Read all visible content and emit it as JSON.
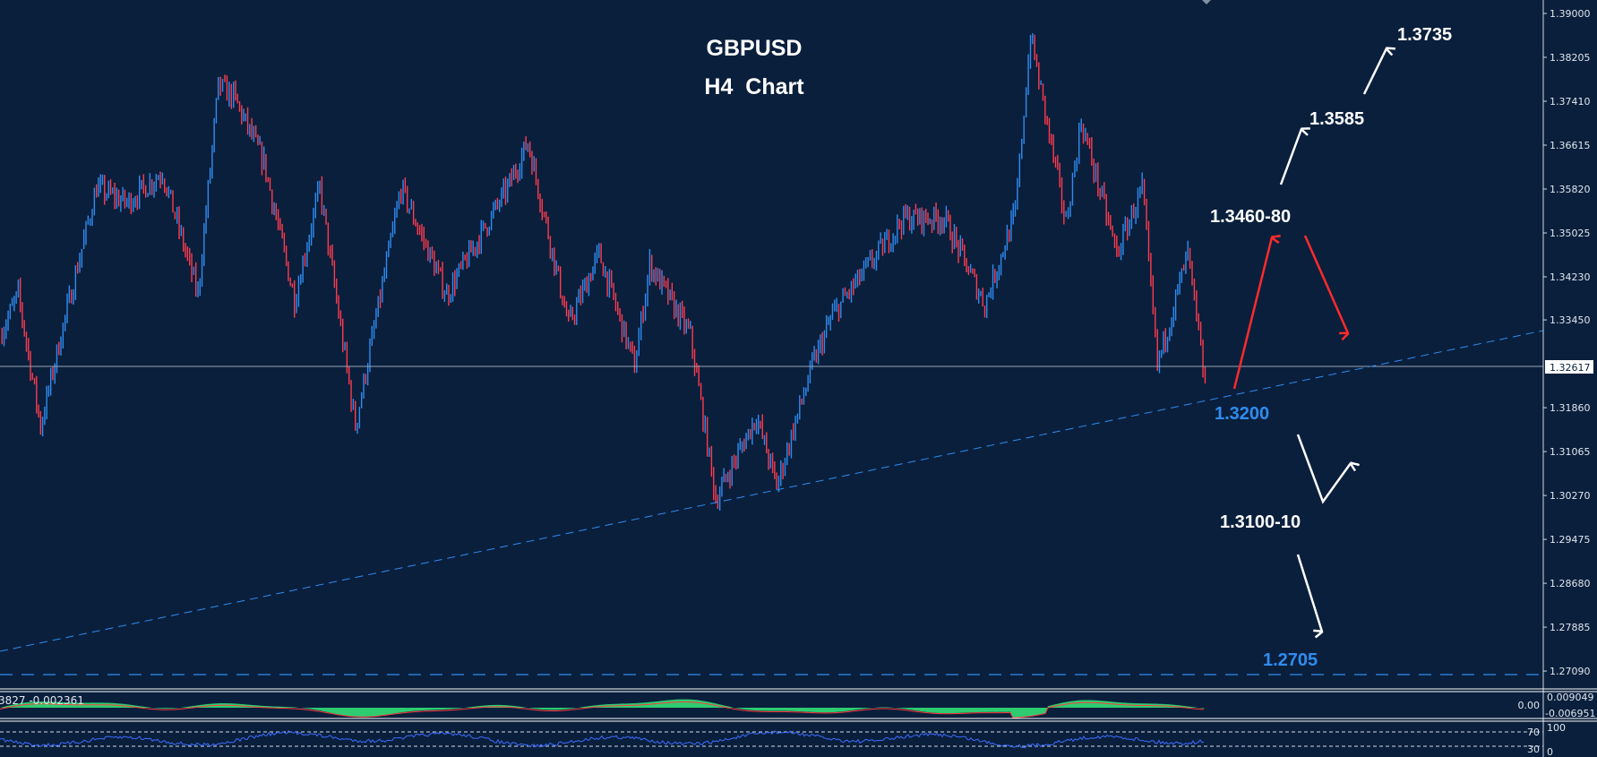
{
  "chart_data": {
    "type": "candlestick",
    "title": "GBPUSD",
    "subtitle": "H4  Chart",
    "symbol": "GBPUSD",
    "timeframe": "H4",
    "ylim": [
      1.268,
      1.392
    ],
    "y_ticks": [
      "1.39000",
      "1.38205",
      "1.37410",
      "1.36615",
      "1.35820",
      "1.35025",
      "1.34230",
      "1.33450",
      "1.31860",
      "1.31065",
      "1.30270",
      "1.29475",
      "1.28680",
      "1.27885",
      "1.27090"
    ],
    "current_price": "1.32617",
    "price_path": {
      "x": [
        0,
        18,
        40,
        60,
        95,
        125,
        160,
        195,
        215,
        230,
        260,
        290,
        315,
        350,
        395,
        440,
        500,
        520,
        560,
        590,
        625,
        640,
        680,
        705,
        745,
        765,
        800,
        820,
        890,
        930,
        970,
        1000,
        1015,
        1050,
        1065,
        1100,
        1125,
        1140,
        1170,
        1187
      ],
      "close": [
        1.3317,
        1.3391,
        1.3152,
        1.3317,
        1.3584,
        1.3557,
        1.3612,
        1.3391,
        1.3768,
        1.375,
        1.363,
        1.3382,
        1.3584,
        1.3152,
        1.3584,
        1.3391,
        1.3584,
        1.3667,
        1.3336,
        1.3465,
        1.3262,
        1.3446,
        1.3317,
        1.302,
        1.317,
        1.3045,
        1.3262,
        1.3354,
        1.3529,
        1.3529,
        1.3373,
        1.3538,
        1.386,
        1.352,
        1.3704,
        1.3465,
        1.3584,
        1.3262,
        1.3465,
        1.3226
      ]
    },
    "trendline": {
      "style": "dashed",
      "color": "#2f8cf0",
      "from_price": 1.2695,
      "to_price": 1.3276
    },
    "support_line": {
      "price": 1.2705,
      "style": "dashed",
      "color": "#2f8cf0"
    },
    "annotations": [
      {
        "text": "1.3735",
        "color": "#ffffff"
      },
      {
        "text": "1.3585",
        "color": "#ffffff"
      },
      {
        "text": "1.3460-80",
        "color": "#ffffff"
      },
      {
        "text": "1.3200",
        "color": "#2f8cf0"
      },
      {
        "text": "1.3100-10",
        "color": "#ffffff"
      },
      {
        "text": "1.2705",
        "color": "#2f8cf0"
      }
    ],
    "macd": {
      "label": "3827 -0.002361",
      "ticks": [
        "0.009049",
        "0.00",
        "-0.006951"
      ],
      "hist_color": "#2ecc71",
      "signal_color": "#ff3b3b"
    },
    "rsi": {
      "ticks": [
        "100",
        "70",
        "30",
        "0"
      ],
      "color": "#3d6cff"
    },
    "colors": {
      "background": "#0a1f3c",
      "bull": "#2f8cf0",
      "bear": "#ff3b4e",
      "arrow_up": "#ff2b2b",
      "arrow_white": "#ffffff"
    },
    "grid": false
  }
}
